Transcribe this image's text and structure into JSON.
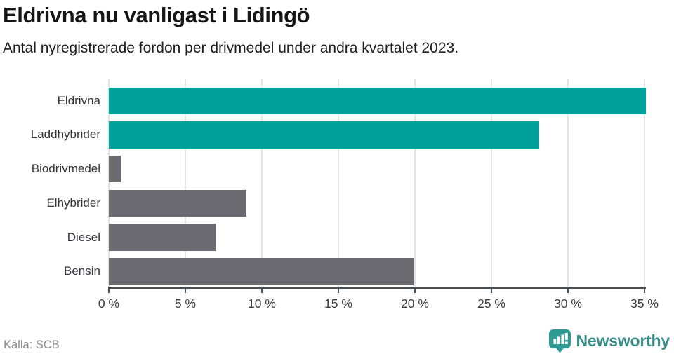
{
  "title": "Eldrivna nu vanligast i Lidingö",
  "subtitle": "Antal nyregistrerade fordon per drivmedel under andra kvartalet 2023.",
  "source": "Källa: SCB",
  "brand": {
    "name": "Newsworthy",
    "text_color": "#398e8a",
    "icon_color": "#2f9a93"
  },
  "colors": {
    "teal_bar": "#00a19a",
    "gray_bar": "#6b6b71",
    "axis": "#4b4b52",
    "gridline": "#e4e4e4"
  },
  "chart_data": {
    "type": "bar",
    "orientation": "horizontal",
    "title": "Eldrivna nu vanligast i Lidingö",
    "subtitle": "Antal nyregistrerade fordon per drivmedel under andra kvartalet 2023.",
    "categories": [
      "Eldrivna",
      "Laddhybrider",
      "Biodrivmedel",
      "Elhybrider",
      "Diesel",
      "Bensin"
    ],
    "values": [
      35.1,
      28.1,
      0.8,
      9.0,
      7.0,
      19.9
    ],
    "bar_colors": [
      "#00a19a",
      "#00a19a",
      "#6b6b71",
      "#6b6b71",
      "#6b6b71",
      "#6b6b71"
    ],
    "unit": "%",
    "xlim": [
      0,
      35
    ],
    "x_ticks": [
      0,
      5,
      10,
      15,
      20,
      25,
      30,
      35
    ],
    "x_tick_labels": [
      "0 %",
      "5 %",
      "10 %",
      "15 %",
      "20 %",
      "25 %",
      "30 %",
      "35 %"
    ],
    "grid": true,
    "legend": false
  }
}
